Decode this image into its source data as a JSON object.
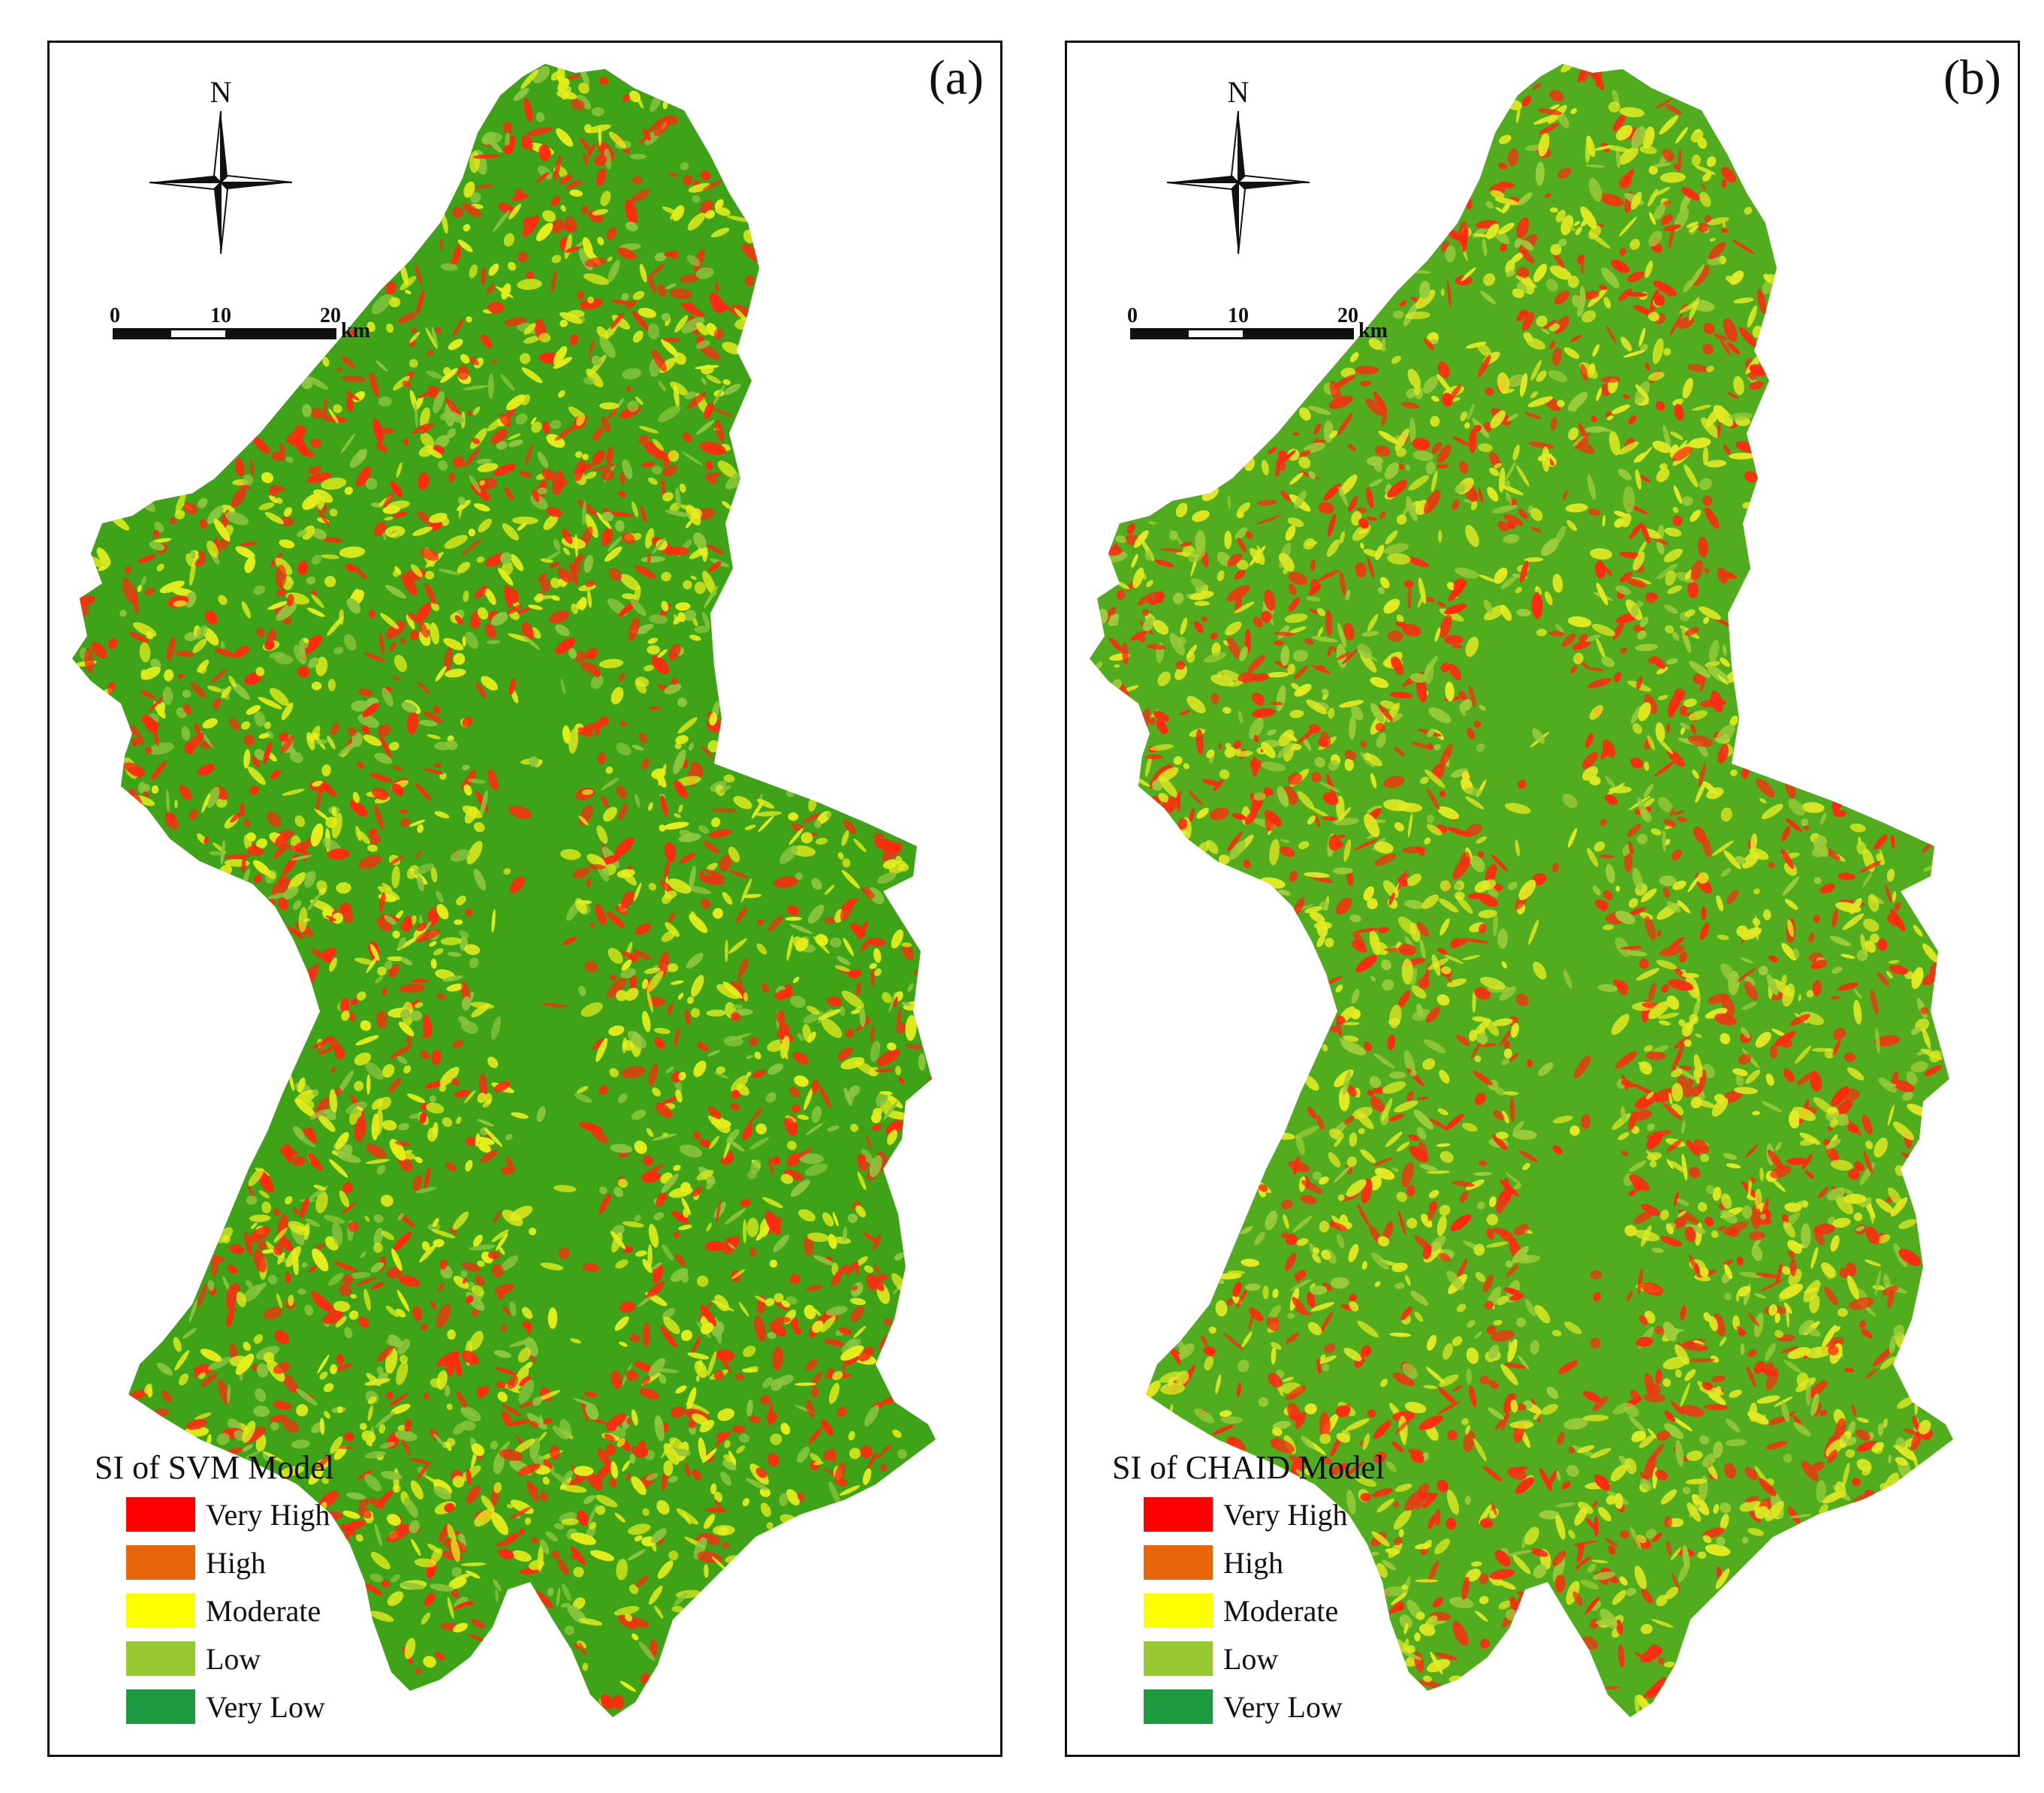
{
  "panels": [
    {
      "id": "a",
      "label": "(a)",
      "north": "N",
      "scale": {
        "ticks": [
          "0",
          "10",
          "20"
        ],
        "unit": "km"
      },
      "legend": {
        "title": "SI of SVM Model",
        "items": [
          {
            "label": "Very High",
            "color": "#ff0000"
          },
          {
            "label": "High",
            "color": "#e8650a"
          },
          {
            "label": "Moderate",
            "color": "#ffff00"
          },
          {
            "label": "Low",
            "color": "#98c832"
          },
          {
            "label": "Very Low",
            "color": "#1e9b41"
          }
        ]
      },
      "map_mix": {
        "base": "#3fa318",
        "low": "#8cc63f",
        "moderate": "#e6ee1a",
        "high": "#ff2a10"
      }
    },
    {
      "id": "b",
      "label": "(b)",
      "north": "N",
      "scale": {
        "ticks": [
          "0",
          "10",
          "20"
        ],
        "unit": "km"
      },
      "legend": {
        "title": "SI of CHAID Model",
        "items": [
          {
            "label": "Very High",
            "color": "#ff0000"
          },
          {
            "label": "High",
            "color": "#e8650a"
          },
          {
            "label": "Moderate",
            "color": "#ffff00"
          },
          {
            "label": "Low",
            "color": "#98c832"
          },
          {
            "label": "Very Low",
            "color": "#1e9b41"
          }
        ]
      },
      "map_mix": {
        "base": "#52ad1e",
        "low": "#9ccc3a",
        "moderate": "#e3ea22",
        "high": "#ff2a10"
      }
    }
  ]
}
